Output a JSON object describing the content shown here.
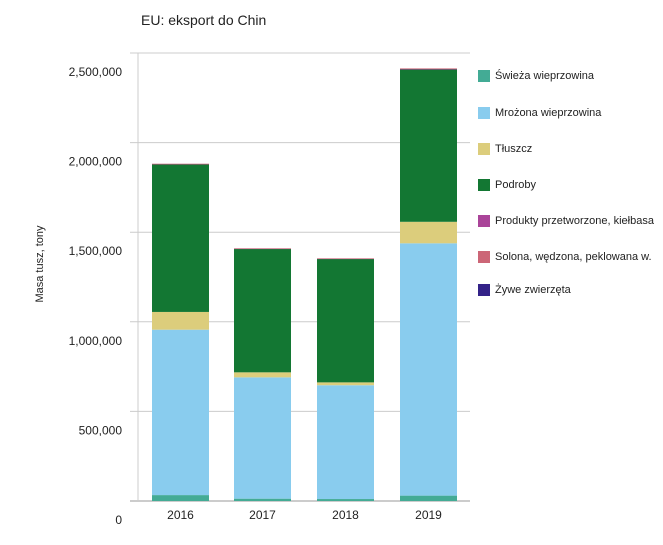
{
  "chart_data": {
    "type": "bar",
    "stacked": true,
    "title": "EU: eksport do Chin",
    "xlabel": "",
    "ylabel": "Masa tusz, tony",
    "ylim": [
      0,
      2500000
    ],
    "yticks": [
      "0",
      "500,000",
      "1,000,000",
      "1,500,000",
      "2,000,000",
      "2,500,000"
    ],
    "ytick_values": [
      0,
      500000,
      1000000,
      1500000,
      2000000,
      2500000
    ],
    "grid": true,
    "legend_position": "right",
    "categories": [
      "2016",
      "2017",
      "2018",
      "2019"
    ],
    "series": [
      {
        "name": "Świeża wieprzowina",
        "color": "#43ab95",
        "values": [
          33000,
          13000,
          11000,
          30000
        ]
      },
      {
        "name": "Mrożona wieprzowina",
        "color": "#89ccee",
        "values": [
          923000,
          677000,
          635000,
          1408000
        ]
      },
      {
        "name": "Tłuszcz",
        "color": "#dccd7c",
        "values": [
          99000,
          28000,
          16000,
          120000
        ]
      },
      {
        "name": "Podroby",
        "color": "#137733",
        "values": [
          825000,
          690000,
          690000,
          851000
        ]
      },
      {
        "name": "Produkty przetworzone, kiełbasa",
        "color": "#aa4499",
        "values": [
          1000,
          1000,
          1000,
          2000
        ]
      },
      {
        "name": "Solona, wędzona, peklowana w.",
        "color": "#cc6677",
        "values": [
          1000,
          1000,
          1000,
          3000
        ]
      },
      {
        "name": "Żywe zwierzęta",
        "color": "#332288",
        "values": [
          0,
          0,
          0,
          0
        ]
      }
    ]
  }
}
